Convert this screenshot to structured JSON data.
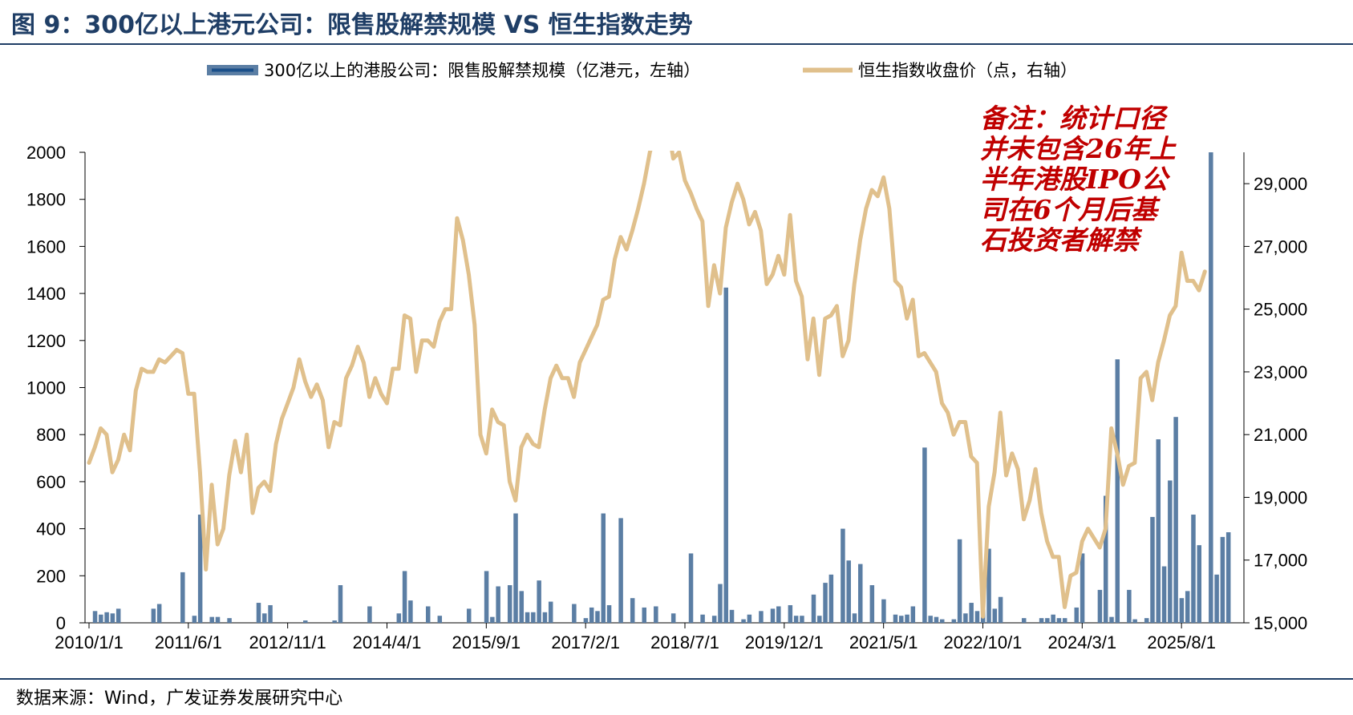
{
  "figure": {
    "title": "图 9：300亿以上港元公司：限售股解禁规模 VS 恒生指数走势",
    "source": "数据来源：Wind，广发证券发展研究中心"
  },
  "chart_data": {
    "type": "bar+line",
    "legend": {
      "placement": "top",
      "items": [
        {
          "name": "300亿以上的港股公司：限售股解禁规模（亿港元，左轴）",
          "type": "bar",
          "color": "#5b7ea4"
        },
        {
          "name": "恒生指数收盘价（点，右轴）",
          "type": "line",
          "color": "#e0c08c"
        }
      ]
    },
    "annotation": {
      "lines": [
        "备注：统计口径",
        "并未包含26年上",
        "半年港股IPO公",
        "司在6个月后基",
        "石投资者解禁"
      ],
      "color": "#c00000"
    },
    "x_tick_labels": [
      "2010/1/1",
      "2011/6/1",
      "2012/11/1",
      "2014/4/1",
      "2015/9/1",
      "2017/2/1",
      "2018/7/1",
      "2019/12/1",
      "2021/5/1",
      "2022/10/1",
      "2024/3/1",
      "2025/8/1"
    ],
    "y_left": {
      "range": [
        0,
        2000
      ],
      "ticks": [
        "0",
        "200",
        "400",
        "600",
        "800",
        "1000",
        "1200",
        "1400",
        "1600",
        "1800",
        "2000"
      ]
    },
    "y_right": {
      "range": [
        15000,
        30000
      ],
      "ticks": [
        "15,000",
        "17,000",
        "19,000",
        "21,000",
        "23,000",
        "25,000",
        "27,000",
        "29,000"
      ]
    },
    "bars": [
      {
        "idx": 1,
        "value": 50
      },
      {
        "idx": 2,
        "value": 35
      },
      {
        "idx": 3,
        "value": 45
      },
      {
        "idx": 4,
        "value": 40
      },
      {
        "idx": 5,
        "value": 60
      },
      {
        "idx": 11,
        "value": 60
      },
      {
        "idx": 12,
        "value": 80
      },
      {
        "idx": 16,
        "value": 215
      },
      {
        "idx": 18,
        "value": 30
      },
      {
        "idx": 19,
        "value": 460
      },
      {
        "idx": 21,
        "value": 25
      },
      {
        "idx": 22,
        "value": 25
      },
      {
        "idx": 24,
        "value": 20
      },
      {
        "idx": 29,
        "value": 85
      },
      {
        "idx": 30,
        "value": 40
      },
      {
        "idx": 31,
        "value": 75
      },
      {
        "idx": 37,
        "value": 10
      },
      {
        "idx": 42,
        "value": 10
      },
      {
        "idx": 43,
        "value": 160
      },
      {
        "idx": 48,
        "value": 70
      },
      {
        "idx": 53,
        "value": 40
      },
      {
        "idx": 54,
        "value": 220
      },
      {
        "idx": 55,
        "value": 95
      },
      {
        "idx": 58,
        "value": 70
      },
      {
        "idx": 60,
        "value": 30
      },
      {
        "idx": 65,
        "value": 60
      },
      {
        "idx": 68,
        "value": 220
      },
      {
        "idx": 69,
        "value": 25
      },
      {
        "idx": 70,
        "value": 155
      },
      {
        "idx": 72,
        "value": 160
      },
      {
        "idx": 73,
        "value": 465
      },
      {
        "idx": 74,
        "value": 135
      },
      {
        "idx": 75,
        "value": 45
      },
      {
        "idx": 76,
        "value": 45
      },
      {
        "idx": 77,
        "value": 180
      },
      {
        "idx": 78,
        "value": 45
      },
      {
        "idx": 79,
        "value": 90
      },
      {
        "idx": 83,
        "value": 80
      },
      {
        "idx": 85,
        "value": 20
      },
      {
        "idx": 86,
        "value": 65
      },
      {
        "idx": 87,
        "value": 50
      },
      {
        "idx": 88,
        "value": 465
      },
      {
        "idx": 89,
        "value": 75
      },
      {
        "idx": 91,
        "value": 445
      },
      {
        "idx": 93,
        "value": 105
      },
      {
        "idx": 95,
        "value": 65
      },
      {
        "idx": 97,
        "value": 70
      },
      {
        "idx": 100,
        "value": 40
      },
      {
        "idx": 103,
        "value": 295
      },
      {
        "idx": 105,
        "value": 35
      },
      {
        "idx": 107,
        "value": 30
      },
      {
        "idx": 108,
        "value": 165
      },
      {
        "idx": 109,
        "value": 1425
      },
      {
        "idx": 110,
        "value": 55
      },
      {
        "idx": 112,
        "value": 15
      },
      {
        "idx": 113,
        "value": 35
      },
      {
        "idx": 115,
        "value": 50
      },
      {
        "idx": 117,
        "value": 60
      },
      {
        "idx": 118,
        "value": 70
      },
      {
        "idx": 120,
        "value": 75
      },
      {
        "idx": 121,
        "value": 30
      },
      {
        "idx": 122,
        "value": 30
      },
      {
        "idx": 124,
        "value": 120
      },
      {
        "idx": 125,
        "value": 30
      },
      {
        "idx": 126,
        "value": 170
      },
      {
        "idx": 127,
        "value": 205
      },
      {
        "idx": 129,
        "value": 400
      },
      {
        "idx": 130,
        "value": 265
      },
      {
        "idx": 131,
        "value": 40
      },
      {
        "idx": 132,
        "value": 250
      },
      {
        "idx": 134,
        "value": 160
      },
      {
        "idx": 136,
        "value": 100
      },
      {
        "idx": 138,
        "value": 35
      },
      {
        "idx": 139,
        "value": 30
      },
      {
        "idx": 140,
        "value": 35
      },
      {
        "idx": 141,
        "value": 70
      },
      {
        "idx": 143,
        "value": 745
      },
      {
        "idx": 144,
        "value": 30
      },
      {
        "idx": 145,
        "value": 25
      },
      {
        "idx": 146,
        "value": 15
      },
      {
        "idx": 148,
        "value": 15
      },
      {
        "idx": 149,
        "value": 355
      },
      {
        "idx": 150,
        "value": 40
      },
      {
        "idx": 151,
        "value": 85
      },
      {
        "idx": 152,
        "value": 50
      },
      {
        "idx": 153,
        "value": 75
      },
      {
        "idx": 154,
        "value": 315
      },
      {
        "idx": 155,
        "value": 60
      },
      {
        "idx": 156,
        "value": 110
      },
      {
        "idx": 160,
        "value": 20
      },
      {
        "idx": 163,
        "value": 20
      },
      {
        "idx": 164,
        "value": 20
      },
      {
        "idx": 165,
        "value": 35
      },
      {
        "idx": 166,
        "value": 20
      },
      {
        "idx": 167,
        "value": 20
      },
      {
        "idx": 169,
        "value": 65
      },
      {
        "idx": 170,
        "value": 295
      },
      {
        "idx": 173,
        "value": 140
      },
      {
        "idx": 174,
        "value": 540
      },
      {
        "idx": 175,
        "value": 25
      },
      {
        "idx": 176,
        "value": 1120
      },
      {
        "idx": 178,
        "value": 140
      },
      {
        "idx": 179,
        "value": 15
      },
      {
        "idx": 181,
        "value": 20
      },
      {
        "idx": 182,
        "value": 450
      },
      {
        "idx": 183,
        "value": 780
      },
      {
        "idx": 184,
        "value": 240
      },
      {
        "idx": 185,
        "value": 605
      },
      {
        "idx": 186,
        "value": 875
      },
      {
        "idx": 187,
        "value": 105
      },
      {
        "idx": 188,
        "value": 135
      },
      {
        "idx": 189,
        "value": 460
      },
      {
        "idx": 190,
        "value": 330
      },
      {
        "idx": 192,
        "value": 2000
      },
      {
        "idx": 193,
        "value": 205
      },
      {
        "idx": 194,
        "value": 365
      },
      {
        "idx": 195,
        "value": 385
      }
    ],
    "line": [
      [
        0,
        20100
      ],
      [
        1,
        20600
      ],
      [
        2,
        21200
      ],
      [
        3,
        21000
      ],
      [
        4,
        19800
      ],
      [
        5,
        20200
      ],
      [
        6,
        21000
      ],
      [
        7,
        20500
      ],
      [
        8,
        22400
      ],
      [
        9,
        23100
      ],
      [
        10,
        23000
      ],
      [
        11,
        23000
      ],
      [
        12,
        23400
      ],
      [
        13,
        23300
      ],
      [
        14,
        23500
      ],
      [
        15,
        23700
      ],
      [
        16,
        23600
      ],
      [
        17,
        22300
      ],
      [
        18,
        22300
      ],
      [
        19,
        19800
      ],
      [
        20,
        16700
      ],
      [
        21,
        19400
      ],
      [
        22,
        17500
      ],
      [
        23,
        18000
      ],
      [
        24,
        19700
      ],
      [
        25,
        20800
      ],
      [
        26,
        19800
      ],
      [
        27,
        21000
      ],
      [
        28,
        18500
      ],
      [
        29,
        19300
      ],
      [
        30,
        19500
      ],
      [
        31,
        19200
      ],
      [
        32,
        20700
      ],
      [
        33,
        21500
      ],
      [
        34,
        22000
      ],
      [
        35,
        22500
      ],
      [
        36,
        23400
      ],
      [
        37,
        22700
      ],
      [
        38,
        22200
      ],
      [
        39,
        22600
      ],
      [
        40,
        22100
      ],
      [
        41,
        20600
      ],
      [
        42,
        21400
      ],
      [
        43,
        21300
      ],
      [
        44,
        22800
      ],
      [
        45,
        23200
      ],
      [
        46,
        23800
      ],
      [
        47,
        23300
      ],
      [
        48,
        22200
      ],
      [
        49,
        22800
      ],
      [
        50,
        22300
      ],
      [
        51,
        22000
      ],
      [
        52,
        23100
      ],
      [
        53,
        23100
      ],
      [
        54,
        24800
      ],
      [
        55,
        24700
      ],
      [
        56,
        23000
      ],
      [
        57,
        24000
      ],
      [
        58,
        24000
      ],
      [
        59,
        23800
      ],
      [
        60,
        24600
      ],
      [
        61,
        25000
      ],
      [
        62,
        25000
      ],
      [
        63,
        27900
      ],
      [
        64,
        27200
      ],
      [
        65,
        26100
      ],
      [
        66,
        24500
      ],
      [
        67,
        21000
      ],
      [
        68,
        20400
      ],
      [
        69,
        21800
      ],
      [
        70,
        21400
      ],
      [
        71,
        21300
      ],
      [
        72,
        19500
      ],
      [
        73,
        18900
      ],
      [
        74,
        20600
      ],
      [
        75,
        21000
      ],
      [
        76,
        20700
      ],
      [
        77,
        20600
      ],
      [
        78,
        21800
      ],
      [
        79,
        22800
      ],
      [
        80,
        23200
      ],
      [
        81,
        22800
      ],
      [
        82,
        22800
      ],
      [
        83,
        22200
      ],
      [
        84,
        23300
      ],
      [
        85,
        23700
      ],
      [
        86,
        24100
      ],
      [
        87,
        24500
      ],
      [
        88,
        25300
      ],
      [
        89,
        25400
      ],
      [
        90,
        26600
      ],
      [
        91,
        27300
      ],
      [
        92,
        26900
      ],
      [
        93,
        27500
      ],
      [
        94,
        28200
      ],
      [
        95,
        29000
      ],
      [
        96,
        30000
      ],
      [
        97,
        30700
      ],
      [
        98,
        30600
      ],
      [
        99,
        31000
      ],
      [
        100,
        29800
      ],
      [
        101,
        30000
      ],
      [
        102,
        29100
      ],
      [
        103,
        28700
      ],
      [
        104,
        28200
      ],
      [
        105,
        27800
      ],
      [
        106,
        25100
      ],
      [
        107,
        26400
      ],
      [
        108,
        25500
      ],
      [
        109,
        27600
      ],
      [
        110,
        28400
      ],
      [
        111,
        29000
      ],
      [
        112,
        28500
      ],
      [
        113,
        27700
      ],
      [
        114,
        28100
      ],
      [
        115,
        27500
      ],
      [
        116,
        25800
      ],
      [
        117,
        26100
      ],
      [
        118,
        26700
      ],
      [
        119,
        26100
      ],
      [
        120,
        28000
      ],
      [
        121,
        25900
      ],
      [
        122,
        25400
      ],
      [
        123,
        23400
      ],
      [
        124,
        24700
      ],
      [
        125,
        22900
      ],
      [
        126,
        24700
      ],
      [
        127,
        24800
      ],
      [
        128,
        25100
      ],
      [
        129,
        23500
      ],
      [
        130,
        24000
      ],
      [
        131,
        25800
      ],
      [
        132,
        27200
      ],
      [
        133,
        28200
      ],
      [
        134,
        28800
      ],
      [
        135,
        28600
      ],
      [
        136,
        29200
      ],
      [
        137,
        28200
      ],
      [
        138,
        25900
      ],
      [
        139,
        25700
      ],
      [
        140,
        24700
      ],
      [
        141,
        25300
      ],
      [
        142,
        23500
      ],
      [
        143,
        23600
      ],
      [
        144,
        23300
      ],
      [
        145,
        23000
      ],
      [
        146,
        22000
      ],
      [
        147,
        21700
      ],
      [
        148,
        21000
      ],
      [
        149,
        21400
      ],
      [
        150,
        21400
      ],
      [
        151,
        20300
      ],
      [
        152,
        20100
      ],
      [
        153,
        15200
      ],
      [
        154,
        18700
      ],
      [
        155,
        19800
      ],
      [
        156,
        21700
      ],
      [
        157,
        19700
      ],
      [
        158,
        20400
      ],
      [
        159,
        19900
      ],
      [
        160,
        18300
      ],
      [
        161,
        18900
      ],
      [
        162,
        19900
      ],
      [
        163,
        18500
      ],
      [
        164,
        17600
      ],
      [
        165,
        17100
      ],
      [
        166,
        17100
      ],
      [
        167,
        15500
      ],
      [
        168,
        16500
      ],
      [
        169,
        16600
      ],
      [
        170,
        17600
      ],
      [
        171,
        18000
      ],
      [
        172,
        17700
      ],
      [
        173,
        17400
      ],
      [
        174,
        18000
      ],
      [
        175,
        21200
      ],
      [
        176,
        20400
      ],
      [
        177,
        19400
      ],
      [
        178,
        20000
      ],
      [
        179,
        20100
      ],
      [
        180,
        22800
      ],
      [
        181,
        23000
      ],
      [
        182,
        22100
      ],
      [
        183,
        23300
      ],
      [
        184,
        24000
      ],
      [
        185,
        24800
      ],
      [
        186,
        25100
      ],
      [
        187,
        26800
      ],
      [
        188,
        25900
      ],
      [
        189,
        25900
      ],
      [
        190,
        25600
      ],
      [
        191,
        26200
      ]
    ]
  }
}
